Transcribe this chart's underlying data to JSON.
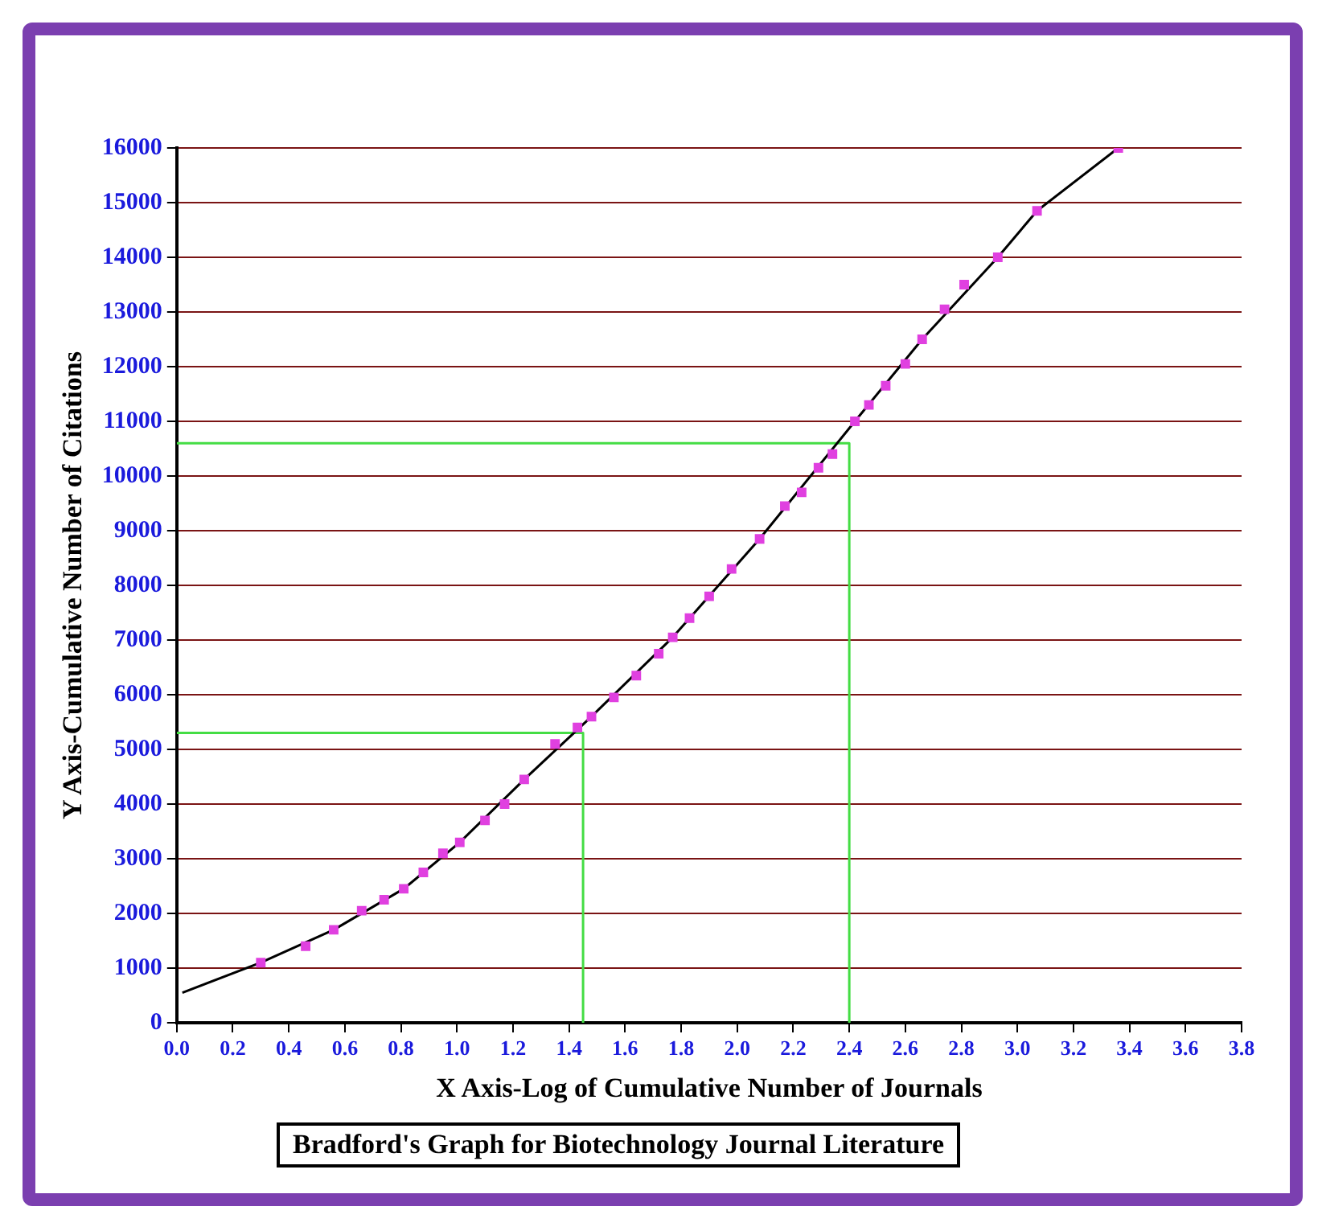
{
  "chart_data": {
    "type": "scatter",
    "title": "Bradford's Graph for Biotechnology Journal Literature",
    "xlabel": "X Axis-Log of Cumulative Number of Journals",
    "ylabel": "Y Axis-Cumulative Number of Citations",
    "xlim": [
      0,
      3.8
    ],
    "xticks": [
      {
        "value": 0,
        "label": "0.0"
      },
      {
        "value": 0.2,
        "label": "0.2"
      },
      {
        "value": 0.4,
        "label": "0.4"
      },
      {
        "value": 0.6,
        "label": "0.6"
      },
      {
        "value": 0.8,
        "label": "0.8"
      },
      {
        "value": 1,
        "label": "1.0"
      },
      {
        "value": 1.2,
        "label": "1.2"
      },
      {
        "value": 1.4,
        "label": "1.4"
      },
      {
        "value": 1.6,
        "label": "1.6"
      },
      {
        "value": 1.8,
        "label": "1.8"
      },
      {
        "value": 2,
        "label": "2.0"
      },
      {
        "value": 2.2,
        "label": "2.2"
      },
      {
        "value": 2.4,
        "label": "2.4"
      },
      {
        "value": 2.6,
        "label": "2.6"
      },
      {
        "value": 2.8,
        "label": "2.8"
      },
      {
        "value": 3,
        "label": "3.0"
      },
      {
        "value": 3.2,
        "label": "3.2"
      },
      {
        "value": 3.4,
        "label": "3.4"
      },
      {
        "value": 3.6,
        "label": "3.6"
      },
      {
        "value": 3.8,
        "label": "3.8"
      }
    ],
    "ylim": [
      0,
      16000
    ],
    "yticks": [
      0,
      1000,
      2000,
      3000,
      4000,
      5000,
      6000,
      7000,
      8000,
      9000,
      10000,
      11000,
      12000,
      13000,
      14000,
      15000,
      16000
    ],
    "grid": "y",
    "legend": false,
    "series": [
      {
        "type": "scatter",
        "color": "#e040e0",
        "marker": "square",
        "x": [
          0.3,
          0.46,
          0.56,
          0.66,
          0.74,
          0.81,
          0.88,
          0.95,
          1.01,
          1.1,
          1.17,
          1.24,
          1.35,
          1.43,
          1.48,
          1.56,
          1.64,
          1.72,
          1.77,
          1.83,
          1.9,
          1.98,
          2.08,
          2.17,
          2.23,
          2.29,
          2.34,
          2.42,
          2.47,
          2.53,
          2.6,
          2.66,
          2.74,
          2.81,
          2.93,
          3.07,
          3.36
        ],
        "values": [
          1100,
          1400,
          1700,
          2050,
          2250,
          2450,
          2750,
          3100,
          3300,
          3700,
          4000,
          4450,
          5100,
          5400,
          5600,
          5950,
          6350,
          6750,
          7050,
          7400,
          7800,
          8300,
          8850,
          9450,
          9700,
          10150,
          10400,
          11000,
          11300,
          11650,
          12050,
          12500,
          13050,
          13500,
          14000,
          14850,
          16000
        ]
      },
      {
        "type": "line",
        "color": "#000000",
        "marker": "none",
        "x": [
          0.02,
          0.3,
          0.56,
          0.81,
          1.01,
          1.24,
          1.48,
          1.77,
          2.08,
          2.42,
          2.66,
          2.93,
          3.07,
          3.36
        ],
        "values": [
          550,
          1100,
          1700,
          2450,
          3300,
          4450,
          5600,
          7050,
          8850,
          11000,
          12500,
          14000,
          14850,
          16000
        ]
      },
      {
        "type": "line",
        "color": "#44dd44",
        "marker": "none",
        "x": [
          0,
          1.45,
          1.45
        ],
        "values": [
          5300,
          5300,
          0
        ]
      },
      {
        "type": "line",
        "color": "#44dd44",
        "marker": "none",
        "x": [
          0,
          2.4,
          2.4
        ],
        "values": [
          10600,
          10600,
          0
        ]
      }
    ]
  }
}
